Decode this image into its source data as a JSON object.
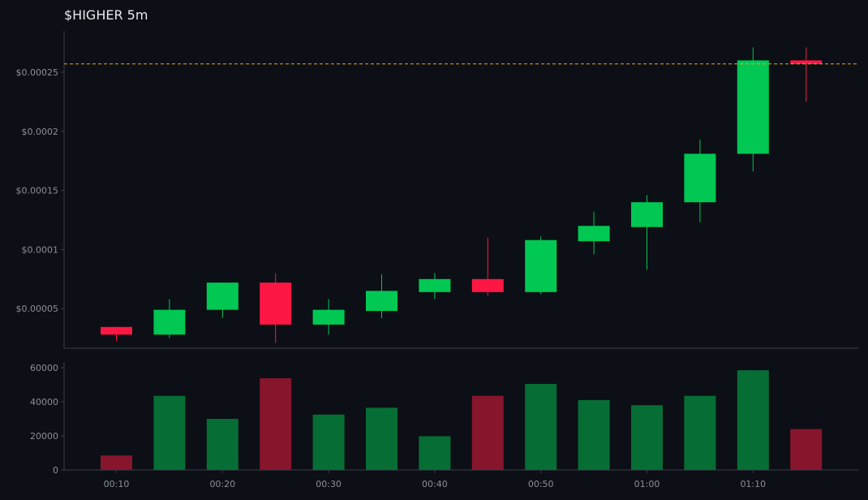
{
  "chart_data": {
    "type": "candlestick",
    "title": "$HIGHER 5m",
    "price_ticks": [
      "$0.00005",
      "$0.0001",
      "$0.00015",
      "$0.0002",
      "$0.00025"
    ],
    "price_tick_values": [
      5e-05,
      0.0001,
      0.00015,
      0.0002,
      0.00025
    ],
    "price_ylim": [
      1.65e-05,
      0.000285
    ],
    "current_price_line": 0.000257,
    "volume_ticks": [
      "0",
      "20000",
      "40000",
      "60000"
    ],
    "volume_tick_values": [
      0,
      20000,
      40000,
      60000
    ],
    "volume_ylim": [
      0,
      60000
    ],
    "x_ticks": [
      "00:10",
      "00:20",
      "00:30",
      "00:40",
      "00:50",
      "01:00",
      "01:10"
    ],
    "x_tick_indices": [
      0,
      2,
      4,
      6,
      8,
      10,
      12
    ],
    "candles": [
      {
        "open": 3.45e-05,
        "high": 3.45e-05,
        "low": 2.25e-05,
        "close": 2.8e-05,
        "volume": 8500
      },
      {
        "open": 2.8e-05,
        "high": 5.8e-05,
        "low": 2.5e-05,
        "close": 4.9e-05,
        "volume": 43500
      },
      {
        "open": 4.9e-05,
        "high": 7.2e-05,
        "low": 4.2e-05,
        "close": 7.2e-05,
        "volume": 30000
      },
      {
        "open": 7.2e-05,
        "high": 8e-05,
        "low": 2.1e-05,
        "close": 3.65e-05,
        "volume": 53800
      },
      {
        "open": 3.65e-05,
        "high": 5.8e-05,
        "low": 2.8e-05,
        "close": 4.9e-05,
        "volume": 32500
      },
      {
        "open": 4.8e-05,
        "high": 7.9e-05,
        "low": 4.2e-05,
        "close": 6.5e-05,
        "volume": 36500
      },
      {
        "open": 6.4e-05,
        "high": 8e-05,
        "low": 5.8e-05,
        "close": 7.5e-05,
        "volume": 19800
      },
      {
        "open": 7.5e-05,
        "high": 0.00011,
        "low": 6.1e-05,
        "close": 6.4e-05,
        "volume": 43500
      },
      {
        "open": 6.4e-05,
        "high": 0.000111,
        "low": 6.2e-05,
        "close": 0.000108,
        "volume": 50500
      },
      {
        "open": 0.000107,
        "high": 0.000132,
        "low": 9.6e-05,
        "close": 0.00012,
        "volume": 41000
      },
      {
        "open": 0.000119,
        "high": 0.000146,
        "low": 8.3e-05,
        "close": 0.00014,
        "volume": 38000
      },
      {
        "open": 0.00014,
        "high": 0.000193,
        "low": 0.000123,
        "close": 0.000181,
        "volume": 43500
      },
      {
        "open": 0.000181,
        "high": 0.000271,
        "low": 0.000166,
        "close": 0.00026,
        "volume": 58500
      },
      {
        "open": 0.00026,
        "high": 0.000271,
        "low": 0.000225,
        "close": 0.000257,
        "volume": 24000
      }
    ],
    "colors": {
      "up": "#00c853",
      "down": "#ff1744",
      "volume_up": "#066d35",
      "volume_down": "#87152c",
      "price_line": "#e0a82e",
      "axis": "#3a3f47",
      "tick_text": "#8a8f98",
      "background": "#0c0f15"
    }
  }
}
